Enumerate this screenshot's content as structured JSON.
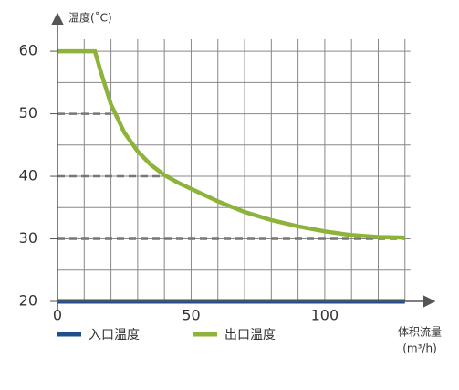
{
  "chart_data": {
    "type": "line",
    "ylabel": "温度(˚C)",
    "xlabel": [
      "体积流量",
      "(m³/h)"
    ],
    "x": [
      0,
      14,
      16,
      20,
      25,
      30,
      35,
      40,
      45,
      50,
      60,
      70,
      80,
      90,
      100,
      110,
      120,
      130
    ],
    "series": [
      {
        "name": "入口温度",
        "color": "#1f4e8c",
        "values": [
          20,
          20,
          20,
          20,
          20,
          20,
          20,
          20,
          20,
          20,
          20,
          20,
          20,
          20,
          20,
          20,
          20,
          20
        ]
      },
      {
        "name": "出口温度",
        "color": "#8db33a",
        "values": [
          60,
          60,
          57,
          51.5,
          47,
          44,
          41.8,
          40.2,
          39,
          38,
          36,
          34.3,
          33,
          32,
          31.2,
          30.6,
          30.3,
          30.2
        ]
      }
    ],
    "reference_lines": [
      {
        "y": 50,
        "x_end": 20
      },
      {
        "y": 40,
        "x_end": 42
      },
      {
        "y": 30,
        "x_end": 130
      }
    ],
    "xlim": [
      0,
      141
    ],
    "ylim": [
      20,
      66
    ],
    "xticks": [
      0,
      50,
      100
    ],
    "yticks": [
      20,
      30,
      40,
      50,
      60
    ],
    "x_grid": [
      10,
      20,
      30,
      40,
      50,
      60,
      70,
      80,
      90,
      100,
      110,
      120,
      130
    ],
    "y_grid": [
      25,
      30,
      35,
      40,
      45,
      50,
      55,
      60
    ],
    "legend": "bottom-left"
  }
}
